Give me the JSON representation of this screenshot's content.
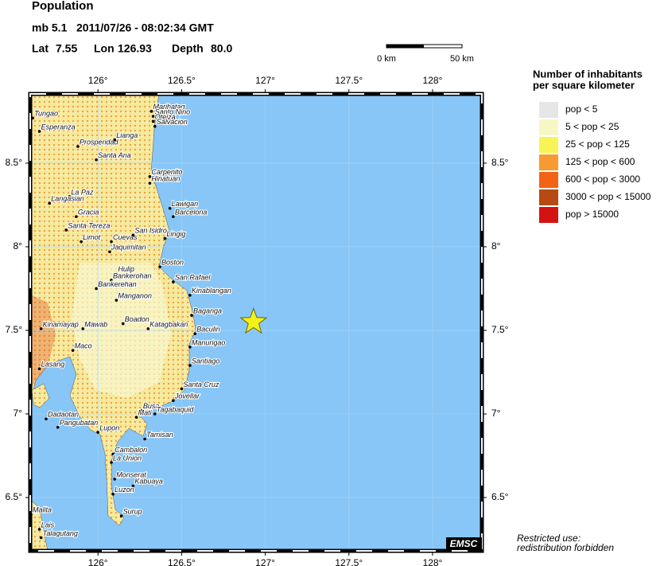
{
  "header": {
    "title": "Population",
    "magnitude": "mb 5.1",
    "datetime": "2011/07/26 - 08:02:34 GMT",
    "lat_label": "Lat",
    "lon_label": "Lon",
    "depth_label": "Depth",
    "depth": "80.0"
  },
  "epicenter": {
    "lat": 7.55,
    "lon": 126.93
  },
  "scale_bar": {
    "start": "0 km",
    "end": "50 km"
  },
  "map": {
    "lon_range": [
      125.595,
      128.295
    ],
    "lat_range": [
      6.181,
      8.914
    ],
    "lon_ticks": [
      {
        "value": 126,
        "label": "126°"
      },
      {
        "value": 126.5,
        "label": "126.5°"
      },
      {
        "value": 127,
        "label": "127°"
      },
      {
        "value": 127.5,
        "label": "127.5°"
      },
      {
        "value": 128,
        "label": "128°"
      }
    ],
    "lat_ticks": [
      {
        "value": 6.5,
        "label": "6.5°"
      },
      {
        "value": 7,
        "label": "7°"
      },
      {
        "value": 7.5,
        "label": "7.5°"
      },
      {
        "value": 8,
        "label": "8°"
      },
      {
        "value": 8.5,
        "label": "8.5°"
      }
    ],
    "towns": [
      {
        "name": "Tungao",
        "lon": 125.61,
        "lat": 8.77
      },
      {
        "name": "Esperanza",
        "lon": 125.65,
        "lat": 8.69
      },
      {
        "name": "Prosperidad",
        "lon": 125.88,
        "lat": 8.6
      },
      {
        "name": "Santa Ana",
        "lon": 125.99,
        "lat": 8.52
      },
      {
        "name": "Lianga",
        "lon": 126.1,
        "lat": 8.64
      },
      {
        "name": "Marihatag",
        "lon": 126.32,
        "lat": 8.81
      },
      {
        "name": "Santo Nino",
        "lon": 126.33,
        "lat": 8.78
      },
      {
        "name": "Oteiza",
        "lon": 126.33,
        "lat": 8.75
      },
      {
        "name": "Salvacion",
        "lon": 126.34,
        "lat": 8.72
      },
      {
        "name": "Carpenito",
        "lon": 126.31,
        "lat": 8.42
      },
      {
        "name": "Hinatuan",
        "lon": 126.31,
        "lat": 8.38
      },
      {
        "name": "La Paz",
        "lon": 125.83,
        "lat": 8.3
      },
      {
        "name": "Langasian",
        "lon": 125.71,
        "lat": 8.26
      },
      {
        "name": "Gracia",
        "lon": 125.87,
        "lat": 8.18
      },
      {
        "name": "Lawigan",
        "lon": 126.43,
        "lat": 8.23
      },
      {
        "name": "Barcelona",
        "lon": 126.45,
        "lat": 8.18
      },
      {
        "name": "Santa Tereza",
        "lon": 125.81,
        "lat": 8.1
      },
      {
        "name": "Lingig",
        "lon": 126.4,
        "lat": 8.05
      },
      {
        "name": "Limot",
        "lon": 125.9,
        "lat": 8.03
      },
      {
        "name": "Cuevas",
        "lon": 126.08,
        "lat": 8.03
      },
      {
        "name": "San Isidro",
        "lon": 126.21,
        "lat": 8.07
      },
      {
        "name": "Jaquimitan",
        "lon": 126.07,
        "lat": 7.97
      },
      {
        "name": "Boston",
        "lon": 126.37,
        "lat": 7.88
      },
      {
        "name": "Hulip",
        "lon": 126.11,
        "lat": 7.84
      },
      {
        "name": "Bankerohan",
        "lon": 126.08,
        "lat": 7.8
      },
      {
        "name": "San Rafael",
        "lon": 126.45,
        "lat": 7.79
      },
      {
        "name": "Bankerehan",
        "lon": 125.99,
        "lat": 7.75
      },
      {
        "name": "Kinablangan",
        "lon": 126.55,
        "lat": 7.71
      },
      {
        "name": "Manganon",
        "lon": 126.11,
        "lat": 7.68
      },
      {
        "name": "Baganga",
        "lon": 126.56,
        "lat": 7.59
      },
      {
        "name": "Boadon",
        "lon": 126.15,
        "lat": 7.54
      },
      {
        "name": "Kinamayap",
        "lon": 125.66,
        "lat": 7.51
      },
      {
        "name": "Mawab",
        "lon": 125.91,
        "lat": 7.51
      },
      {
        "name": "Katagbakan",
        "lon": 126.3,
        "lat": 7.51
      },
      {
        "name": "Baculin",
        "lon": 126.58,
        "lat": 7.48
      },
      {
        "name": "Maco",
        "lon": 125.85,
        "lat": 7.38
      },
      {
        "name": "Manurigao",
        "lon": 126.55,
        "lat": 7.4
      },
      {
        "name": "Santiago",
        "lon": 126.55,
        "lat": 7.29
      },
      {
        "name": "Lasang",
        "lon": 125.65,
        "lat": 7.27
      },
      {
        "name": "Santa Cruz",
        "lon": 126.5,
        "lat": 7.15
      },
      {
        "name": "Jovellar",
        "lon": 126.45,
        "lat": 7.08
      },
      {
        "name": "Busa",
        "lon": 126.26,
        "lat": 7.02
      },
      {
        "name": "Tagabaquid",
        "lon": 126.34,
        "lat": 7.0
      },
      {
        "name": "Mati",
        "lon": 126.23,
        "lat": 6.98
      },
      {
        "name": "Dadaotan",
        "lon": 125.69,
        "lat": 6.97
      },
      {
        "name": "Pangubatan",
        "lon": 125.76,
        "lat": 6.92
      },
      {
        "name": "Lupon",
        "lon": 126.0,
        "lat": 6.89
      },
      {
        "name": "Tamisan",
        "lon": 126.28,
        "lat": 6.85
      },
      {
        "name": "Cambalon",
        "lon": 126.09,
        "lat": 6.76
      },
      {
        "name": "La Union",
        "lon": 126.08,
        "lat": 6.71
      },
      {
        "name": "Monserat",
        "lon": 126.1,
        "lat": 6.61
      },
      {
        "name": "Kabuaya",
        "lon": 126.21,
        "lat": 6.57
      },
      {
        "name": "Luzon",
        "lon": 126.09,
        "lat": 6.52
      },
      {
        "name": "Surup",
        "lon": 126.14,
        "lat": 6.39
      },
      {
        "name": "Malita",
        "lon": 125.6,
        "lat": 6.4
      },
      {
        "name": "Lais",
        "lon": 125.65,
        "lat": 6.31
      },
      {
        "name": "Talagutang",
        "lon": 125.66,
        "lat": 6.26
      }
    ]
  },
  "legend": {
    "title_line1": "Number of inhabitants",
    "title_line2": "per square kilometer",
    "items": [
      {
        "label": "pop < 5",
        "color": "#e6e6e6"
      },
      {
        "label": "5 < pop < 25",
        "color": "#f7f7c6"
      },
      {
        "label": "25 < pop < 125",
        "color": "#f8f454"
      },
      {
        "label": "125 < pop < 600",
        "color": "#f79a32"
      },
      {
        "label": "600 < pop < 3000",
        "color": "#f46214"
      },
      {
        "label": "3000 < pop < 15000",
        "color": "#b54a12"
      },
      {
        "label": "pop > 15000",
        "color": "#d51212"
      }
    ]
  },
  "footer": {
    "badge": "EMSC",
    "note_line1": "Restricted use:",
    "note_line2": "redistribution forbidden"
  }
}
